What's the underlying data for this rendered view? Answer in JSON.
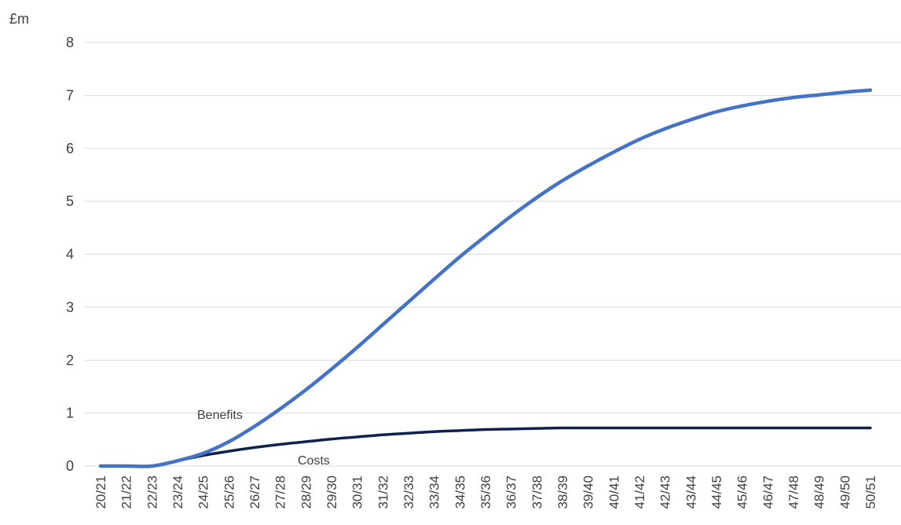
{
  "chart_data": {
    "type": "line",
    "ylabel": "£m",
    "xlabel": "",
    "ylim": [
      0,
      8
    ],
    "yticks": [
      0,
      1,
      2,
      3,
      4,
      5,
      6,
      7,
      8
    ],
    "grid": true,
    "categories": [
      "20/21",
      "21/22",
      "22/23",
      "23/24",
      "24/25",
      "25/26",
      "26/27",
      "27/28",
      "28/29",
      "29/30",
      "30/31",
      "31/32",
      "32/33",
      "33/34",
      "34/35",
      "35/36",
      "36/37",
      "37/38",
      "38/39",
      "39/40",
      "40/41",
      "41/42",
      "42/43",
      "43/44",
      "44/45",
      "45/46",
      "46/47",
      "47/48",
      "48/49",
      "49/50",
      "50/51"
    ],
    "series": [
      {
        "name": "Benefits",
        "color": "#4472c4",
        "values": [
          0,
          0,
          0,
          0.1,
          0.24,
          0.46,
          0.75,
          1.08,
          1.44,
          1.83,
          2.24,
          2.67,
          3.1,
          3.53,
          3.95,
          4.34,
          4.72,
          5.07,
          5.39,
          5.67,
          5.93,
          6.17,
          6.37,
          6.54,
          6.69,
          6.8,
          6.89,
          6.96,
          7.01,
          7.06,
          7.1
        ]
      },
      {
        "name": "Costs",
        "color": "#0e2150",
        "values": [
          0,
          0,
          0,
          0.1,
          0.2,
          0.28,
          0.35,
          0.41,
          0.46,
          0.51,
          0.55,
          0.59,
          0.62,
          0.65,
          0.67,
          0.69,
          0.7,
          0.71,
          0.72,
          0.72,
          0.72,
          0.72,
          0.72,
          0.72,
          0.72,
          0.72,
          0.72,
          0.72,
          0.72,
          0.72,
          0.72
        ]
      }
    ]
  }
}
